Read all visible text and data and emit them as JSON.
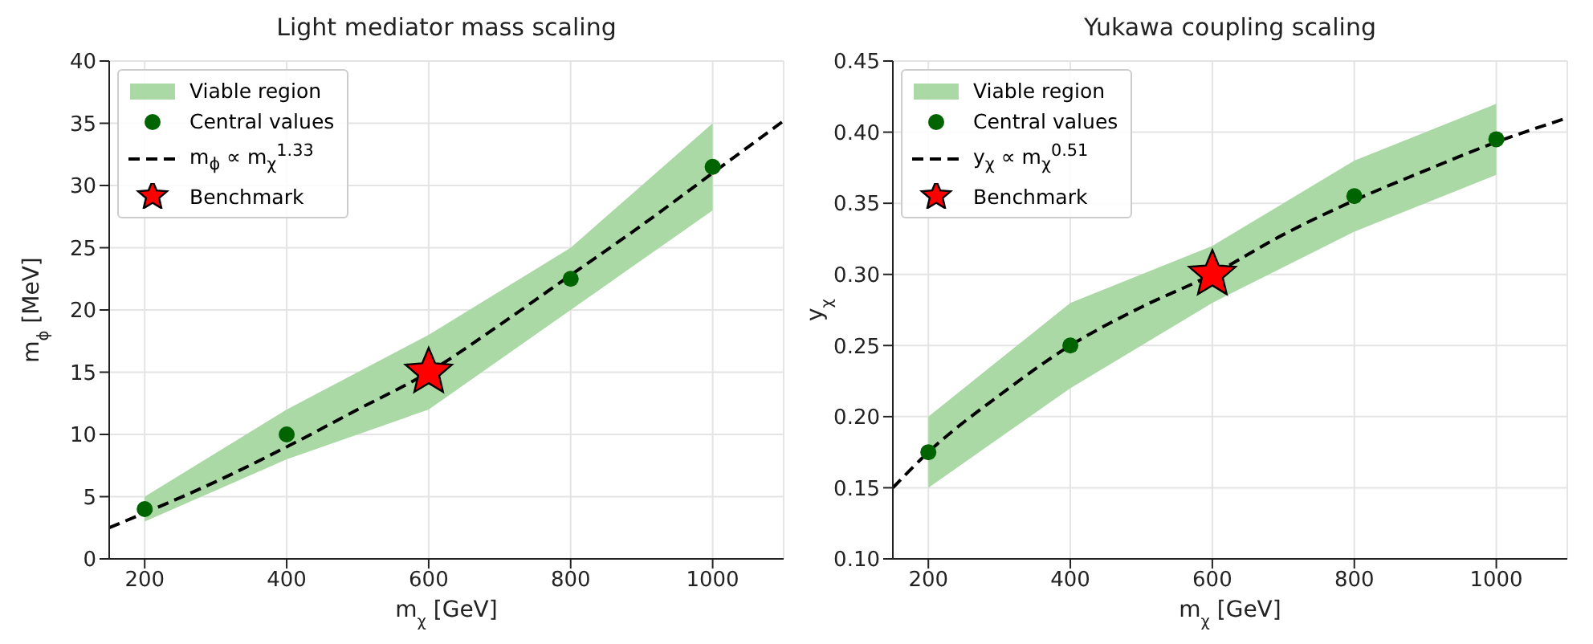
{
  "chart_data": [
    {
      "type": "line",
      "title": "Light mediator mass scaling",
      "xlabel": "m$_{χ}$ [GeV]",
      "ylabel": "m$_{ϕ}$ [MeV]",
      "xlim": [
        150,
        1100
      ],
      "xticks": [
        200,
        400,
        600,
        800,
        1000
      ],
      "ylim": [
        0,
        40
      ],
      "yticks": [
        0,
        5,
        10,
        15,
        20,
        25,
        30,
        35,
        40
      ],
      "grid": true,
      "legend": "top left",
      "series": [
        {
          "name": "Viable region",
          "type": "area",
          "color": "#abd9a6"
        },
        {
          "name": "Central values",
          "type": "scatter",
          "color": "#006400",
          "marker": "circle",
          "x": [
            200,
            400,
            600,
            800,
            1000
          ],
          "values": [
            4,
            10,
            null,
            22.5,
            31.5
          ],
          "lower": [
            3,
            8,
            12,
            20,
            28
          ],
          "upper": [
            5,
            12,
            18,
            25,
            35
          ]
        },
        {
          "name": "m$_{ϕ}$ ∝ m$_{χ}$$^{1.33}$",
          "type": "line",
          "color": "#000000",
          "line_style": "dashed",
          "marker": "none",
          "x": [
            150,
            200,
            300,
            400,
            500,
            600,
            700,
            800,
            900,
            1000,
            1100
          ],
          "values": [
            2.5,
            3.7,
            6.2,
            9,
            12,
            15,
            18.8,
            22.8,
            26.8,
            31,
            35.2
          ]
        },
        {
          "name": "Benchmark",
          "type": "scatter",
          "color": "#ff0000",
          "marker": "star",
          "x": [
            600
          ],
          "values": [
            15
          ]
        }
      ]
    },
    {
      "type": "line",
      "title": "Yukawa coupling scaling",
      "xlabel": "m$_{χ}$ [GeV]",
      "ylabel": "y$_{χ}$",
      "xlim": [
        150,
        1100
      ],
      "xticks": [
        200,
        400,
        600,
        800,
        1000
      ],
      "ylim": [
        0.1,
        0.45
      ],
      "yticks": [
        {
          "value": 0.1,
          "label": "0.10"
        },
        {
          "value": 0.15,
          "label": "0.15"
        },
        {
          "value": 0.2,
          "label": "0.20"
        },
        {
          "value": 0.25,
          "label": "0.25"
        },
        {
          "value": 0.3,
          "label": "0.30"
        },
        {
          "value": 0.35,
          "label": "0.35"
        },
        {
          "value": 0.4,
          "label": "0.40"
        },
        {
          "value": 0.45,
          "label": "0.45"
        }
      ],
      "grid": true,
      "legend": "top left",
      "series": [
        {
          "name": "Viable region",
          "type": "area",
          "color": "#abd9a6"
        },
        {
          "name": "Central values",
          "type": "scatter",
          "color": "#006400",
          "marker": "circle",
          "x": [
            200,
            400,
            600,
            800,
            1000
          ],
          "values": [
            0.175,
            0.25,
            null,
            0.355,
            0.395
          ],
          "lower": [
            0.15,
            0.22,
            0.28,
            0.33,
            0.37
          ],
          "upper": [
            0.2,
            0.28,
            0.32,
            0.38,
            0.42
          ]
        },
        {
          "name": "y$_{χ}$ ∝ m$_{χ}$$^{0.51}$",
          "type": "line",
          "color": "#000000",
          "line_style": "dashed",
          "marker": "none",
          "x": [
            150,
            200,
            300,
            400,
            500,
            600,
            700,
            800,
            900,
            1000,
            1100
          ],
          "values": [
            0.15,
            0.175,
            0.215,
            0.25,
            0.277,
            0.3,
            0.328,
            0.352,
            0.373,
            0.393,
            0.41
          ]
        },
        {
          "name": "Benchmark",
          "type": "scatter",
          "color": "#ff0000",
          "marker": "star",
          "x": [
            600
          ],
          "values": [
            0.3
          ]
        }
      ]
    }
  ]
}
